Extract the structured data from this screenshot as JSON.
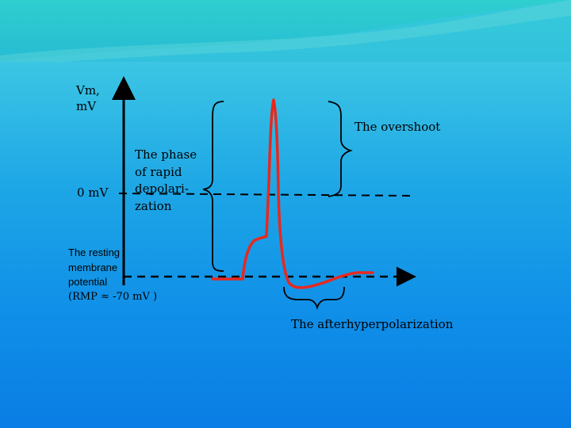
{
  "labels": {
    "y_axis": [
      "Vm,",
      "mV"
    ],
    "zero": "0 mV",
    "rapid_depolarization": [
      "The phase",
      "of rapid",
      "depolari-",
      "zation"
    ],
    "overshoot": "The overshoot",
    "resting": [
      "The resting",
      "membrane",
      "potential",
      "(RMP ≈ -70 mV )"
    ],
    "afterhyperpolarization": "The afterhyperpolarization"
  },
  "colors": {
    "trace": "#e8281e",
    "axes": "#000000",
    "accent": "#e8281e"
  }
}
